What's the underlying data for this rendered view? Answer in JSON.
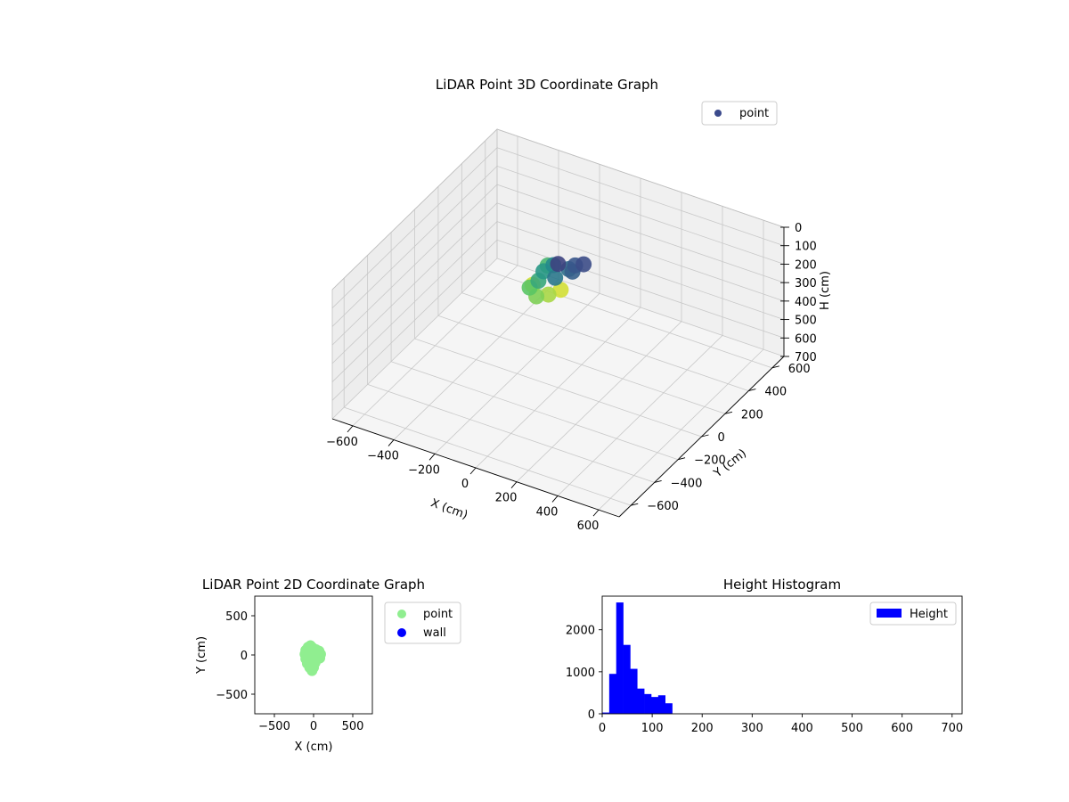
{
  "colors": {
    "point_3d_legend": "#3b4a8c",
    "point_2d": "#90ee90",
    "wall": "#0000ff",
    "histogram": "#0000ff",
    "pane": "#f2f2f2",
    "grid": "#c8c8c8"
  },
  "chart_data": [
    {
      "type": "scatter",
      "projection": "3d",
      "title": "LiDAR Point 3D Coordinate Graph",
      "xlabel": "X (cm)",
      "ylabel": "Y (cm)",
      "zlabel": "H (cm)",
      "xlim": [
        -700,
        700
      ],
      "ylim": [
        -700,
        700
      ],
      "zlim": [
        700,
        0
      ],
      "xticks": [
        "−600",
        "−400",
        "−200",
        "0",
        "200",
        "400",
        "600"
      ],
      "yticks": [
        "−600",
        "−400",
        "−200",
        "0",
        "200",
        "400",
        "600"
      ],
      "zticks": [
        "0",
        "100",
        "200",
        "300",
        "400",
        "500",
        "600",
        "700"
      ],
      "legend": [
        {
          "label": "point",
          "color": "#3b4a8c"
        }
      ],
      "legend_position": "top-right",
      "colormap": "viridis",
      "grid": true,
      "series": [
        {
          "name": "point",
          "points": [
            {
              "x": 0,
              "y": 0,
              "h": 30
            },
            {
              "x": 60,
              "y": 40,
              "h": 40
            },
            {
              "x": 90,
              "y": 60,
              "h": 35
            },
            {
              "x": -40,
              "y": 30,
              "h": 70
            },
            {
              "x": -60,
              "y": -20,
              "h": 80
            },
            {
              "x": -50,
              "y": -80,
              "h": 90
            },
            {
              "x": 20,
              "y": -60,
              "h": 60
            },
            {
              "x": 40,
              "y": 20,
              "h": 55
            },
            {
              "x": -80,
              "y": 50,
              "h": 100
            },
            {
              "x": -70,
              "y": -120,
              "h": 110
            },
            {
              "x": -20,
              "y": -150,
              "h": 120
            },
            {
              "x": 10,
              "y": -100,
              "h": 130
            },
            {
              "x": -90,
              "y": -60,
              "h": 140
            },
            {
              "x": 30,
              "y": -30,
              "h": 140
            },
            {
              "x": 70,
              "y": 0,
              "h": 45
            }
          ]
        }
      ]
    },
    {
      "type": "scatter",
      "title": "LiDAR Point 2D Coordinate Graph",
      "xlabel": "X (cm)",
      "ylabel": "Y (cm)",
      "xlim": [
        -750,
        750
      ],
      "ylim": [
        -750,
        750
      ],
      "xticks": [
        "−500",
        "0",
        "500"
      ],
      "yticks": [
        "500",
        "0",
        "−500"
      ],
      "legend": [
        {
          "label": "point",
          "color": "#90ee90"
        },
        {
          "label": "wall",
          "color": "#0000ff"
        }
      ],
      "legend_position": "outside-right",
      "series": [
        {
          "name": "point",
          "points": [
            {
              "x": -70,
              "y": 100
            },
            {
              "x": -40,
              "y": 120
            },
            {
              "x": -10,
              "y": 90
            },
            {
              "x": 30,
              "y": 70
            },
            {
              "x": 70,
              "y": 50
            },
            {
              "x": 90,
              "y": 10
            },
            {
              "x": 80,
              "y": -40
            },
            {
              "x": 40,
              "y": -60
            },
            {
              "x": 20,
              "y": -100
            },
            {
              "x": 0,
              "y": -160
            },
            {
              "x": -20,
              "y": -200
            },
            {
              "x": -50,
              "y": -160
            },
            {
              "x": -80,
              "y": -110
            },
            {
              "x": -100,
              "y": -50
            },
            {
              "x": -110,
              "y": 10
            },
            {
              "x": -100,
              "y": 60
            },
            {
              "x": -40,
              "y": 20
            },
            {
              "x": -30,
              "y": -80
            },
            {
              "x": 10,
              "y": 20
            },
            {
              "x": -60,
              "y": -40
            }
          ]
        },
        {
          "name": "wall",
          "points": []
        }
      ]
    },
    {
      "type": "bar",
      "subtype": "histogram",
      "title": "Height Histogram",
      "xlim": [
        0,
        720
      ],
      "ylim": [
        0,
        2800
      ],
      "xticks": [
        "0",
        "100",
        "200",
        "300",
        "400",
        "500",
        "600",
        "700"
      ],
      "yticks": [
        "0",
        "1000",
        "2000"
      ],
      "legend": [
        {
          "label": "Height",
          "color": "#0000ff"
        }
      ],
      "legend_position": "top-right",
      "bin_width": 14,
      "bins": [
        {
          "start": 0,
          "count": 30
        },
        {
          "start": 14,
          "count": 950
        },
        {
          "start": 28,
          "count": 2650
        },
        {
          "start": 42,
          "count": 1640
        },
        {
          "start": 56,
          "count": 1070
        },
        {
          "start": 70,
          "count": 600
        },
        {
          "start": 84,
          "count": 470
        },
        {
          "start": 98,
          "count": 400
        },
        {
          "start": 112,
          "count": 440
        },
        {
          "start": 126,
          "count": 250
        }
      ]
    }
  ]
}
